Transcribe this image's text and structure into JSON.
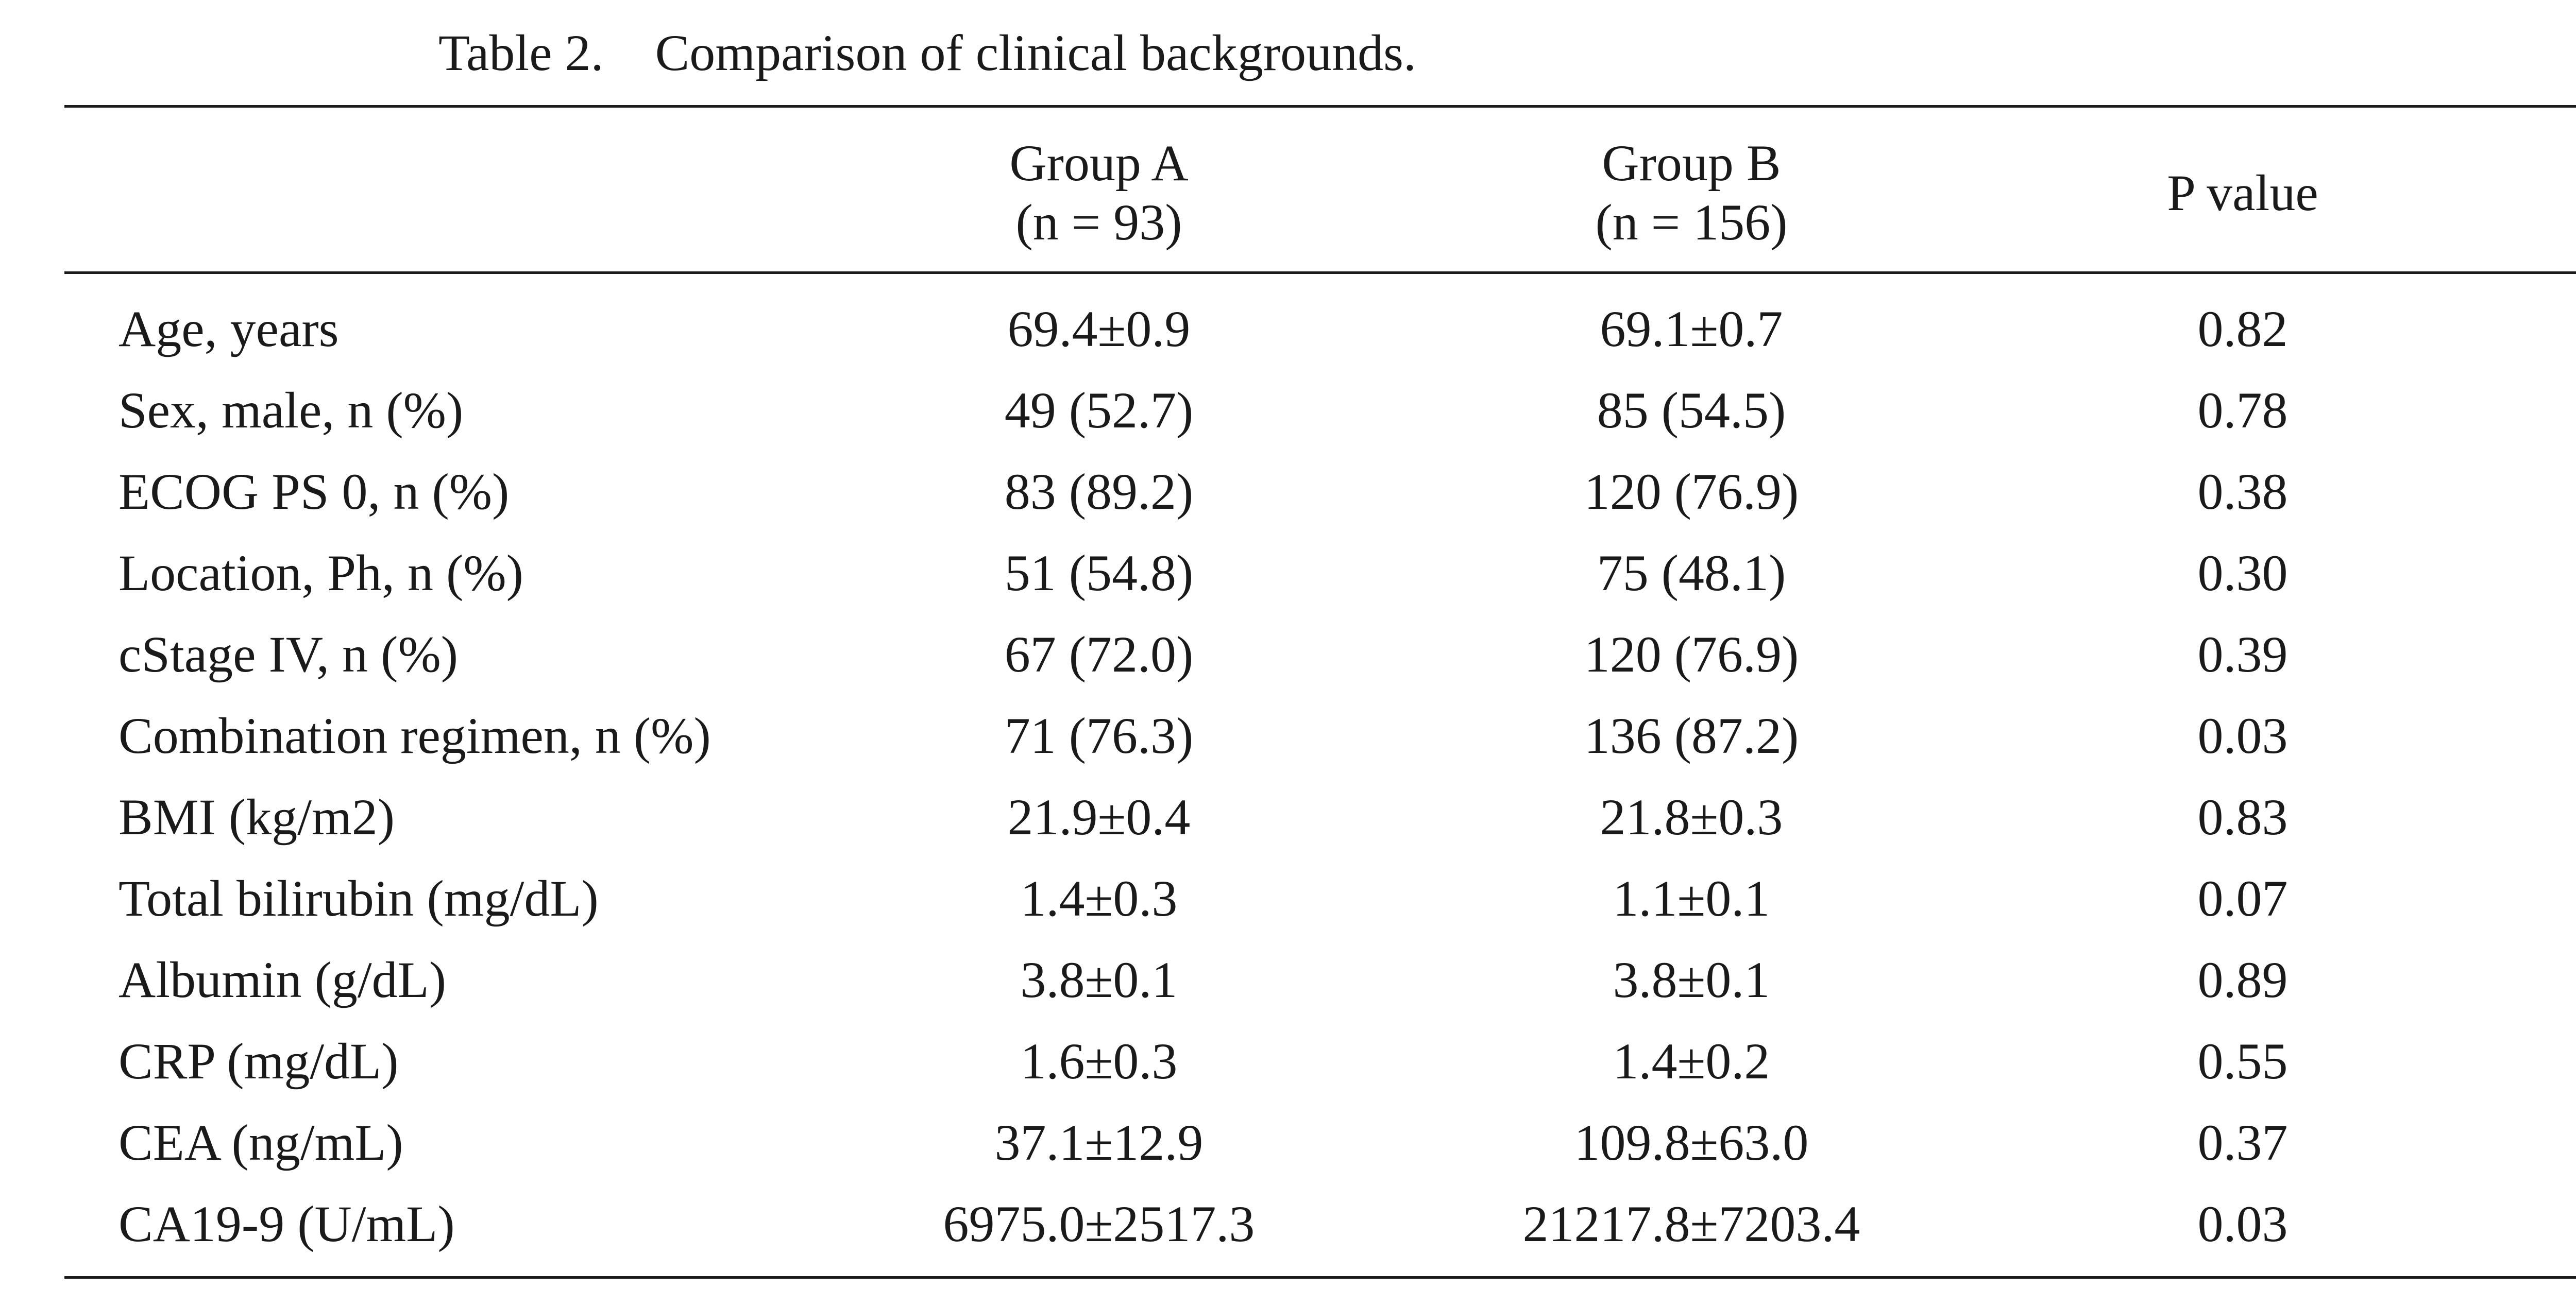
{
  "caption": "Table 2.    Comparison of clinical backgrounds.",
  "header": {
    "group_a_name": "Group A",
    "group_a_n": "(n = 93)",
    "group_b_name": "Group B",
    "group_b_n": "(n = 156)",
    "p_value": "P value"
  },
  "rows": [
    {
      "label": "Age, years",
      "group_a": "69.4±0.9",
      "group_b": "69.1±0.7",
      "p": "0.82"
    },
    {
      "label": "Sex, male, n (%)",
      "group_a": "49 (52.7)",
      "group_b": "85 (54.5)",
      "p": "0.78"
    },
    {
      "label": "ECOG PS 0, n (%)",
      "group_a": "83 (89.2)",
      "group_b": "120 (76.9)",
      "p": "0.38"
    },
    {
      "label": "Location, Ph, n (%)",
      "group_a": "51 (54.8)",
      "group_b": "75 (48.1)",
      "p": "0.30"
    },
    {
      "label": "cStage IV, n (%)",
      "group_a": "67 (72.0)",
      "group_b": "120 (76.9)",
      "p": "0.39"
    },
    {
      "label": "Combination regimen, n (%)",
      "group_a": "71 (76.3)",
      "group_b": "136 (87.2)",
      "p": "0.03"
    },
    {
      "label": "BMI (kg/m2)",
      "group_a": "21.9±0.4",
      "group_b": "21.8±0.3",
      "p": "0.83"
    },
    {
      "label": "Total bilirubin (mg/dL)",
      "group_a": "1.4±0.3",
      "group_b": "1.1±0.1",
      "p": "0.07"
    },
    {
      "label": "Albumin (g/dL)",
      "group_a": "3.8±0.1",
      "group_b": "3.8±0.1",
      "p": "0.89"
    },
    {
      "label": "CRP (mg/dL)",
      "group_a": "1.6±0.3",
      "group_b": "1.4±0.2",
      "p": "0.55"
    },
    {
      "label": "CEA (ng/mL)",
      "group_a": "37.1±12.9",
      "group_b": "109.8±63.0",
      "p": "0.37"
    },
    {
      "label": "CA19-9 (U/mL)",
      "group_a": "6975.0±2517.3",
      "group_b": "21217.8±7203.4",
      "p": "0.03"
    }
  ]
}
